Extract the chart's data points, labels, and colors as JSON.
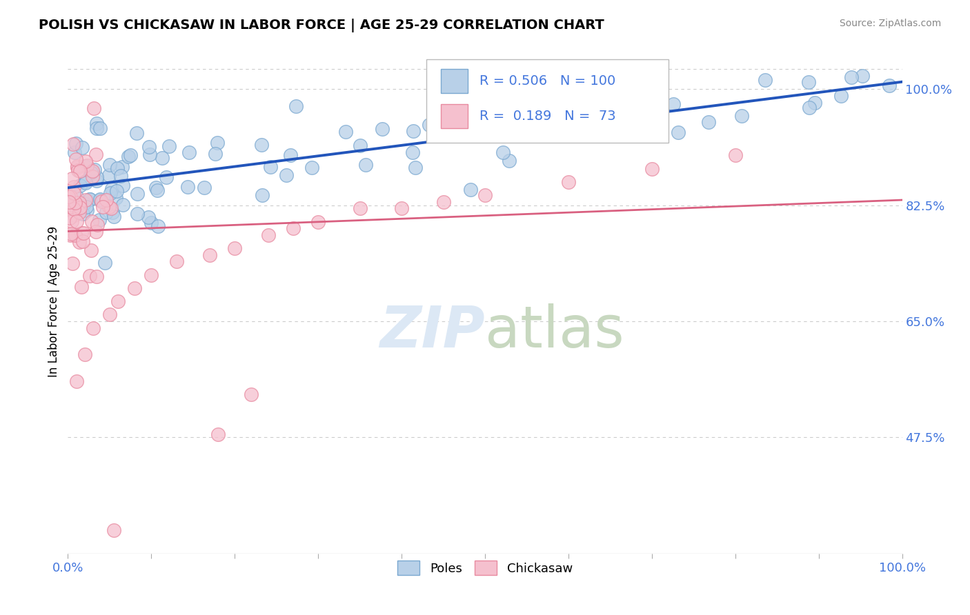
{
  "title": "POLISH VS CHICKASAW IN LABOR FORCE | AGE 25-29 CORRELATION CHART",
  "source_text": "Source: ZipAtlas.com",
  "ylabel": "In Labor Force | Age 25-29",
  "xlim": [
    0.0,
    1.0
  ],
  "ylim": [
    0.3,
    1.06
  ],
  "yticks": [
    0.475,
    0.65,
    0.825,
    1.0
  ],
  "ytick_labels": [
    "47.5%",
    "65.0%",
    "82.5%",
    "100.0%"
  ],
  "poles_color": "#b8d0e8",
  "poles_edge_color": "#7aa8d0",
  "chickasaw_color": "#f5c0ce",
  "chickasaw_edge_color": "#e88aa0",
  "trend_poles_color": "#2255bb",
  "trend_chickasaw_color": "#d96080",
  "tick_label_color": "#4477dd",
  "background_color": "#ffffff",
  "grid_color": "#cccccc",
  "R_poles": 0.506,
  "N_poles": 100,
  "R_chickasaw": 0.189,
  "N_chickasaw": 73,
  "legend_label_poles": "Poles",
  "legend_label_chickasaw": "Chickasaw",
  "watermark_color": "#dce8f5"
}
